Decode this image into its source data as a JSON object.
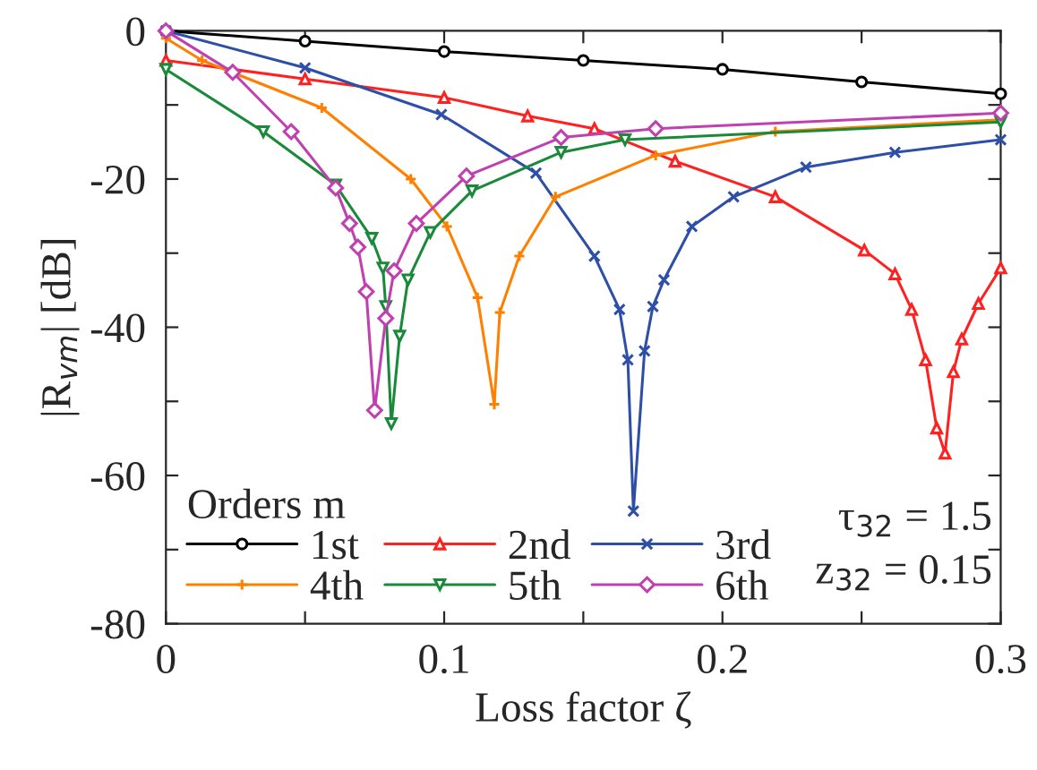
{
  "chart_data": {
    "type": "line",
    "xlabel": "Loss factor ζ",
    "ylabel": "|R$_{vm}$| [dB]",
    "legend_title": "Orders m",
    "xlim": [
      0,
      0.3
    ],
    "ylim": [
      -80,
      0
    ],
    "xticks": [
      0,
      {
        "value": 0.05,
        "label": null
      },
      0.1,
      {
        "value": 0.15,
        "label": null
      },
      0.2,
      {
        "value": 0.25,
        "label": null
      },
      0.3
    ],
    "yticks": [
      {
        "value": -80,
        "label": "-80"
      },
      {
        "value": -70,
        "label": null
      },
      {
        "value": -60,
        "label": "-60"
      },
      {
        "value": -50,
        "label": null
      },
      {
        "value": -40,
        "label": "-40"
      },
      {
        "value": -30,
        "label": null
      },
      {
        "value": -20,
        "label": "-20"
      },
      {
        "value": -10,
        "label": null
      },
      0
    ],
    "grid": false,
    "legend": "bottom left",
    "annotations": [
      "τ$_{32}$ = 1.5",
      "z$_{32}$ = 0.15"
    ],
    "series": [
      {
        "name": "1st",
        "color": "#000000",
        "marker": "circle",
        "x": [
          0,
          0.05,
          0.1,
          0.15,
          0.2,
          0.25,
          0.3
        ],
        "values": [
          0,
          -1.4,
          -2.8,
          -4.0,
          -5.2,
          -6.9,
          -8.5
        ]
      },
      {
        "name": "2nd",
        "color": "#ff2020",
        "marker": "triangle",
        "x": [
          0,
          0.05,
          0.1,
          0.13,
          0.154,
          0.183,
          0.219,
          0.251,
          0.262,
          0.268,
          0.273,
          0.277,
          0.28,
          0.283,
          0.286,
          0.292,
          0.3
        ],
        "values": [
          -4,
          -6.5,
          -9,
          -11.5,
          -13.2,
          -17.6,
          -22.4,
          -29.6,
          -32.8,
          -37.6,
          -44.4,
          -53.6,
          -57,
          -46,
          -41.6,
          -36.8,
          -32
        ]
      },
      {
        "name": "3rd",
        "color": "#2e4fa8",
        "marker": "x",
        "x": [
          0,
          0.05,
          0.099,
          0.133,
          0.154,
          0.163,
          0.166,
          0.168,
          0.172,
          0.175,
          0.179,
          0.189,
          0.204,
          0.23,
          0.262,
          0.3
        ],
        "values": [
          0,
          -5,
          -11.3,
          -19.2,
          -30.4,
          -37.6,
          -44.4,
          -64.8,
          -43.2,
          -37.2,
          -33.6,
          -26.4,
          -22.4,
          -18.4,
          -16.4,
          -14.7
        ]
      },
      {
        "name": "4th",
        "color": "#ff8000",
        "marker": "plus",
        "x": [
          0,
          0.013,
          0.056,
          0.088,
          0.101,
          0.112,
          0.118,
          0.12,
          0.127,
          0.14,
          0.176,
          0.219,
          0.3
        ],
        "values": [
          -1,
          -4,
          -10.4,
          -20,
          -26.4,
          -36,
          -50.4,
          -38,
          -30.4,
          -22.4,
          -16.8,
          -13.6,
          -12
        ]
      },
      {
        "name": "5th",
        "color": "#1a8a3a",
        "marker": "triangle_down",
        "x": [
          0,
          0.035,
          0.061,
          0.074,
          0.078,
          0.079,
          0.081,
          0.084,
          0.087,
          0.095,
          0.11,
          0.142,
          0.165,
          0.3
        ],
        "values": [
          -5.2,
          -13.6,
          -20.8,
          -28,
          -32,
          -37.2,
          -53,
          -41.2,
          -33.6,
          -27.2,
          -21.6,
          -16.4,
          -14.7,
          -12.3
        ]
      },
      {
        "name": "6th",
        "color": "#c040b0",
        "marker": "diamond",
        "x": [
          0,
          0.024,
          0.045,
          0.061,
          0.066,
          0.069,
          0.072,
          0.075,
          0.079,
          0.082,
          0.09,
          0.108,
          0.142,
          0.176,
          0.3
        ],
        "values": [
          0,
          -5.6,
          -13.6,
          -21.2,
          -26,
          -29.2,
          -35.2,
          -51.2,
          -38.8,
          -32.4,
          -26,
          -19.6,
          -14.4,
          -13.2,
          -11.1
        ]
      }
    ]
  }
}
